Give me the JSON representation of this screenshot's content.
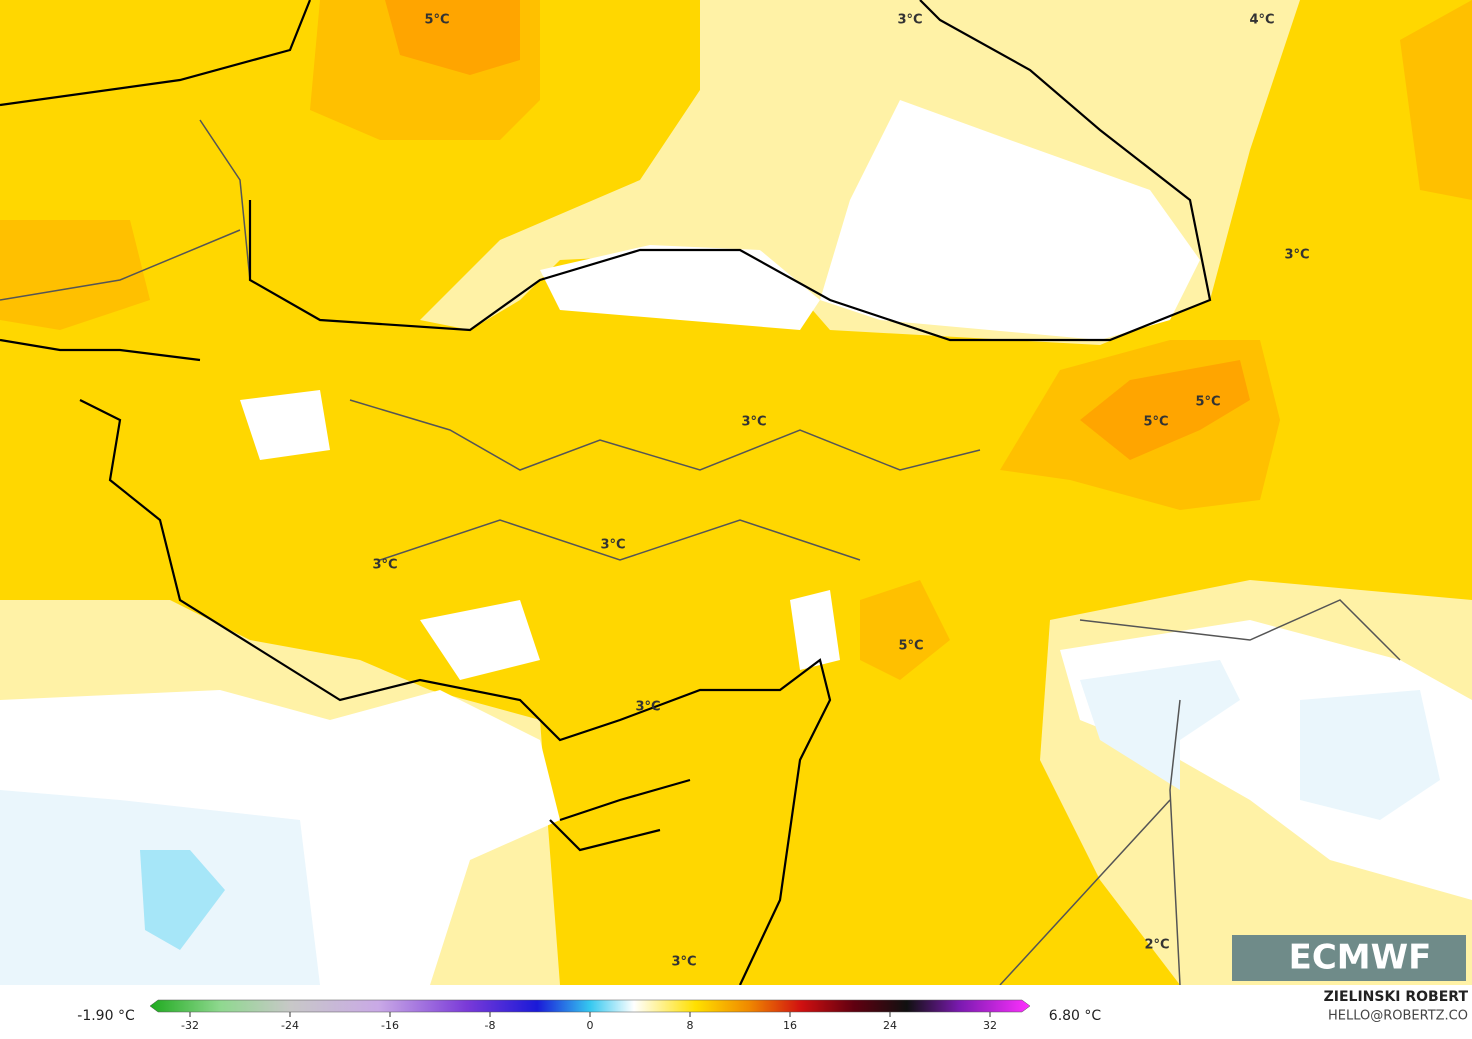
{
  "map": {
    "contour_labels": [
      "5°C",
      "3°C",
      "4°C",
      "3°C",
      "5°C",
      "5°C",
      "3°C",
      "3°C",
      "3°C",
      "5°C",
      "3°C",
      "2°C",
      "3°C"
    ]
  },
  "logo": "ECMWF",
  "colorbar": {
    "min_label": "-1.90 °C",
    "max_label": "6.80 °C",
    "range": [
      -35,
      35
    ],
    "ticks": [
      -32,
      -24,
      -16,
      -8,
      0,
      8,
      16,
      24,
      32
    ]
  },
  "credit": {
    "author": "ZIELINSKI ROBERT",
    "email": "HELLO@ROBERTZ.CO"
  }
}
